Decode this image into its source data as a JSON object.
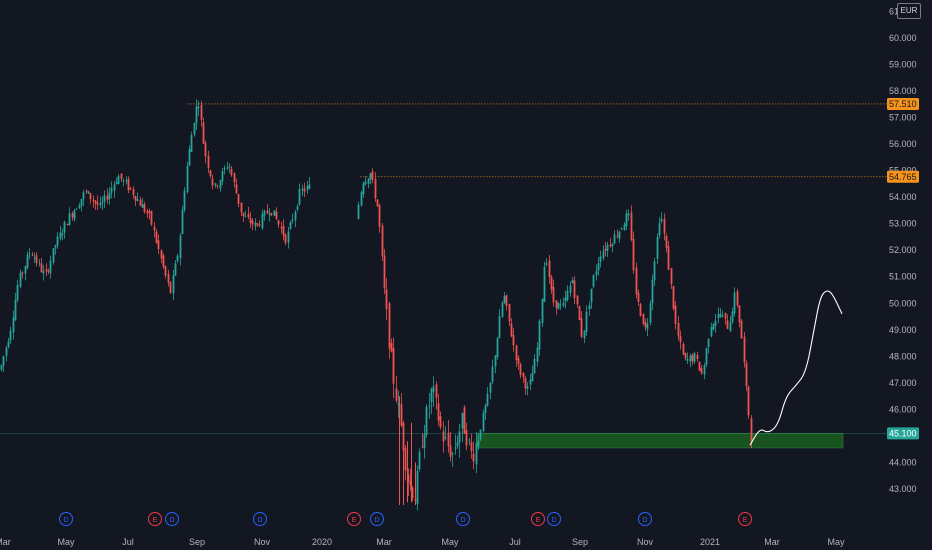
{
  "currency": "EUR",
  "chart_data": {
    "type": "candlestick",
    "x_ticks": [
      "Mar",
      "May",
      "Jul",
      "Sep",
      "Nov",
      "2020",
      "Mar",
      "May",
      "Jul",
      "Sep",
      "Nov",
      "2021",
      "Mar",
      "May"
    ],
    "y_ticks": [
      "43.000",
      "44.000",
      "45.000",
      "46.000",
      "47.000",
      "48.000",
      "49.000",
      "50.000",
      "51.000",
      "52.000",
      "53.000",
      "54.000",
      "55.000",
      "56.000",
      "57.000",
      "58.000",
      "59.000",
      "60.000",
      "61.000"
    ],
    "ylim": [
      42.4,
      61.2
    ],
    "price_levels": [
      {
        "value": 57.51,
        "label": "57.510",
        "color": "#f7931a"
      },
      {
        "value": 54.765,
        "label": "54.765",
        "color": "#f7931a"
      },
      {
        "value": 45.1,
        "label": "45.100",
        "color": "#26a69a"
      }
    ],
    "support_zone": {
      "low": 44.55,
      "high": 45.1
    },
    "events": [
      {
        "label": "D",
        "color": "#2962ff"
      },
      {
        "label": "E",
        "color": "#f23645"
      },
      {
        "label": "D",
        "color": "#2962ff"
      },
      {
        "label": "D",
        "color": "#2962ff"
      },
      {
        "label": "E",
        "color": "#f23645"
      },
      {
        "label": "D",
        "color": "#2962ff"
      },
      {
        "label": "D",
        "color": "#2962ff"
      },
      {
        "label": "E",
        "color": "#f23645"
      },
      {
        "label": "D",
        "color": "#2962ff"
      },
      {
        "label": "D",
        "color": "#2962ff"
      },
      {
        "label": "E",
        "color": "#f23645"
      }
    ],
    "price_path": [
      [
        0,
        47.5
      ],
      [
        10,
        49.0
      ],
      [
        18,
        50.8
      ],
      [
        30,
        52.0
      ],
      [
        45,
        51.0
      ],
      [
        55,
        52.2
      ],
      [
        68,
        53.2
      ],
      [
        85,
        54.2
      ],
      [
        100,
        53.6
      ],
      [
        118,
        54.8
      ],
      [
        132,
        54.2
      ],
      [
        150,
        53.2
      ],
      [
        162,
        51.5
      ],
      [
        170,
        50.4
      ],
      [
        178,
        52.0
      ],
      [
        186,
        55.0
      ],
      [
        194,
        57.0
      ],
      [
        198,
        57.7
      ],
      [
        204,
        55.8
      ],
      [
        214,
        54.3
      ],
      [
        228,
        55.3
      ],
      [
        242,
        53.3
      ],
      [
        256,
        52.9
      ],
      [
        270,
        53.6
      ],
      [
        286,
        52.4
      ],
      [
        300,
        54.2
      ],
      [
        310,
        54.4
      ],
      [
        316,
        52.0
      ],
      [
        325,
        51.3
      ],
      [
        333,
        50.2
      ],
      [
        345,
        51.7
      ],
      [
        355,
        53.0
      ],
      [
        362,
        54.6
      ],
      [
        370,
        54.9
      ],
      [
        378,
        53.5
      ],
      [
        385,
        50.0
      ],
      [
        392,
        47.5
      ],
      [
        400,
        45.5
      ],
      [
        408,
        43.3
      ],
      [
        415,
        42.7
      ],
      [
        422,
        45.0
      ],
      [
        432,
        46.8
      ],
      [
        442,
        45.0
      ],
      [
        452,
        44.3
      ],
      [
        462,
        45.6
      ],
      [
        472,
        44.2
      ],
      [
        480,
        45.3
      ],
      [
        488,
        46.5
      ],
      [
        496,
        48.5
      ],
      [
        503,
        50.4
      ],
      [
        510,
        49.0
      ],
      [
        518,
        47.6
      ],
      [
        528,
        46.7
      ],
      [
        536,
        48.0
      ],
      [
        540,
        49.5
      ],
      [
        545,
        52.0
      ],
      [
        552,
        50.1
      ],
      [
        562,
        49.8
      ],
      [
        572,
        50.9
      ],
      [
        582,
        48.7
      ],
      [
        592,
        50.8
      ],
      [
        600,
        51.9
      ],
      [
        610,
        52.3
      ],
      [
        620,
        52.8
      ],
      [
        628,
        53.4
      ],
      [
        636,
        50.2
      ],
      [
        646,
        48.9
      ],
      [
        652,
        51.0
      ],
      [
        660,
        53.5
      ],
      [
        668,
        51.5
      ],
      [
        676,
        49.0
      ],
      [
        684,
        47.8
      ],
      [
        694,
        48.0
      ],
      [
        702,
        47.3
      ],
      [
        710,
        49.2
      ],
      [
        720,
        49.6
      ],
      [
        728,
        49.1
      ],
      [
        735,
        50.4
      ],
      [
        741,
        48.8
      ],
      [
        746,
        46.7
      ],
      [
        751,
        44.8
      ]
    ],
    "projection_path": [
      [
        750,
        44.65
      ],
      [
        760,
        45.3
      ],
      [
        768,
        45.1
      ],
      [
        778,
        45.4
      ],
      [
        786,
        46.5
      ],
      [
        796,
        46.9
      ],
      [
        806,
        47.4
      ],
      [
        814,
        49.0
      ],
      [
        820,
        50.2
      ],
      [
        826,
        50.5
      ],
      [
        832,
        50.4
      ],
      [
        842,
        49.6
      ]
    ]
  }
}
